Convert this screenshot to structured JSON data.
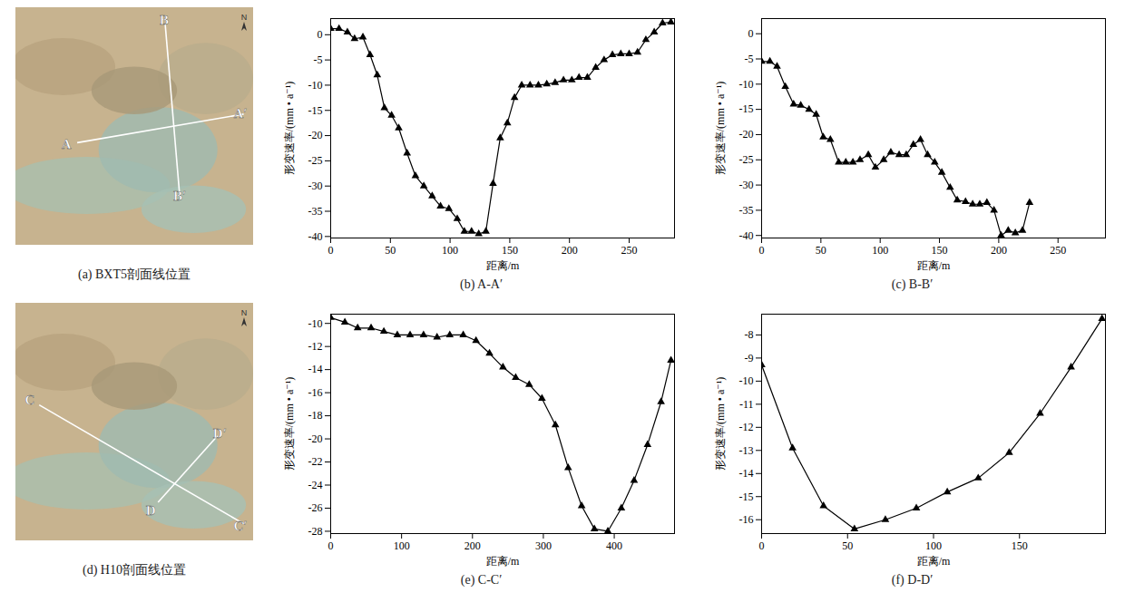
{
  "chart_data": [
    {
      "type": "map",
      "title": "(a) BXT5剖面线位置",
      "profiles": [
        [
          "A",
          "A′"
        ],
        [
          "B",
          "B′"
        ]
      ],
      "north": "N"
    },
    {
      "type": "line",
      "title": "(b) A-A′",
      "x_label": "距离/m",
      "y_label": "形变速率/(mm • a⁻¹)",
      "marker": "triangle",
      "color": "#000000",
      "x": [
        0,
        7,
        14,
        20,
        27,
        33,
        39,
        45,
        51,
        57,
        64,
        71,
        78,
        85,
        92,
        99,
        106,
        112,
        118,
        124,
        130,
        136,
        142,
        148,
        154,
        160,
        167,
        174,
        181,
        188,
        195,
        202,
        208,
        215,
        222,
        229,
        236,
        243,
        250,
        257,
        264,
        271,
        278,
        285
      ],
      "values": [
        1.2,
        1.2,
        0.5,
        -0.8,
        -0.5,
        -4,
        -8,
        -14.5,
        -16,
        -18.5,
        -23.5,
        -28,
        -30,
        -32,
        -34,
        -34.5,
        -36.5,
        -39,
        -39,
        -39.5,
        -39,
        -29.5,
        -20.5,
        -17.5,
        -12.5,
        -10,
        -10,
        -10,
        -9.8,
        -9.5,
        -9,
        -9,
        -8.5,
        -8.5,
        -6.5,
        -5,
        -4,
        -3.8,
        -3.8,
        -3.5,
        -1,
        0.5,
        2.3,
        2.5
      ],
      "xlim": [
        0,
        288
      ],
      "xticks": [
        0,
        50,
        100,
        150,
        200,
        250
      ],
      "ylim": [
        -40.3,
        3.2
      ],
      "yticks": [
        -40,
        -35,
        -30,
        -25,
        -20,
        -15,
        -10,
        -5,
        0
      ]
    },
    {
      "type": "line",
      "title": "(c) B-B′",
      "x_label": "距离/m",
      "y_label": "形变速率/(mm • a⁻¹)",
      "marker": "triangle",
      "color": "#000000",
      "x": [
        0,
        7,
        13,
        20,
        27,
        33,
        40,
        46,
        52,
        58,
        65,
        71,
        77,
        83,
        90,
        96,
        103,
        109,
        116,
        122,
        128,
        134,
        140,
        146,
        152,
        159,
        165,
        172,
        178,
        184,
        190,
        196,
        202,
        208,
        214,
        220,
        226
      ],
      "values": [
        -5.5,
        -5.5,
        -6.5,
        -10.5,
        -14,
        -14.2,
        -15,
        -16,
        -20.5,
        -21,
        -25.5,
        -25.5,
        -25.5,
        -25,
        -24,
        -26.5,
        -25,
        -23.5,
        -24,
        -24,
        -22,
        -21,
        -24,
        -25.5,
        -27.5,
        -30.5,
        -33,
        -33.3,
        -33.8,
        -33.8,
        -33.5,
        -35,
        -40,
        -39,
        -39.5,
        -39,
        -33.5
      ],
      "xlim": [
        0,
        290
      ],
      "xticks": [
        0,
        50,
        100,
        150,
        200,
        250
      ],
      "ylim": [
        -40.5,
        3
      ],
      "yticks": [
        -40,
        -35,
        -30,
        -25,
        -20,
        -15,
        -10,
        -5,
        0
      ]
    },
    {
      "type": "map",
      "title": "(d) H10剖面线位置",
      "profiles": [
        [
          "C",
          "C′"
        ],
        [
          "D",
          "D′"
        ]
      ],
      "north": "N"
    },
    {
      "type": "line",
      "title": "(e) C-C′",
      "x_label": "距离/m",
      "y_label": "形变速率/(mm • a⁻¹)",
      "marker": "triangle",
      "color": "#000000",
      "x": [
        0,
        20,
        38,
        57,
        75,
        94,
        112,
        131,
        150,
        168,
        187,
        205,
        224,
        243,
        261,
        280,
        298,
        317,
        335,
        354,
        372,
        391,
        410,
        428,
        447,
        466,
        480
      ],
      "values": [
        -9.5,
        -9.9,
        -10.4,
        -10.4,
        -10.7,
        -11,
        -11,
        -11,
        -11.2,
        -11,
        -11,
        -11.5,
        -12.6,
        -13.8,
        -14.7,
        -15.3,
        -16.5,
        -18.8,
        -22.5,
        -25.8,
        -27.8,
        -28,
        -26,
        -23.6,
        -20.5,
        -16.8,
        -13.2
      ],
      "xlim": [
        0,
        485
      ],
      "xticks": [
        0,
        100,
        200,
        300,
        400
      ],
      "ylim": [
        -28.2,
        -9.2
      ],
      "yticks": [
        -28,
        -26,
        -24,
        -22,
        -20,
        -18,
        -16,
        -14,
        -12,
        -10
      ]
    },
    {
      "type": "line",
      "title": "(f) D-D′",
      "x_label": "距离/m",
      "y_label": "形变速率/(mm • a⁻¹)",
      "marker": "triangle",
      "color": "#000000",
      "x": [
        0,
        18,
        36,
        54,
        72,
        90,
        108,
        126,
        144,
        162,
        180,
        198
      ],
      "values": [
        -9.3,
        -12.9,
        -15.4,
        -16.4,
        -16,
        -15.5,
        -14.8,
        -14.2,
        -13.1,
        -11.4,
        -9.4,
        -7.3
      ],
      "xlim": [
        0,
        200
      ],
      "xticks": [
        0,
        50,
        100,
        150
      ],
      "ylim": [
        -16.6,
        -7.1
      ],
      "yticks": [
        -16,
        -15,
        -14,
        -13,
        -12,
        -11,
        -10,
        -9,
        -8
      ]
    }
  ]
}
